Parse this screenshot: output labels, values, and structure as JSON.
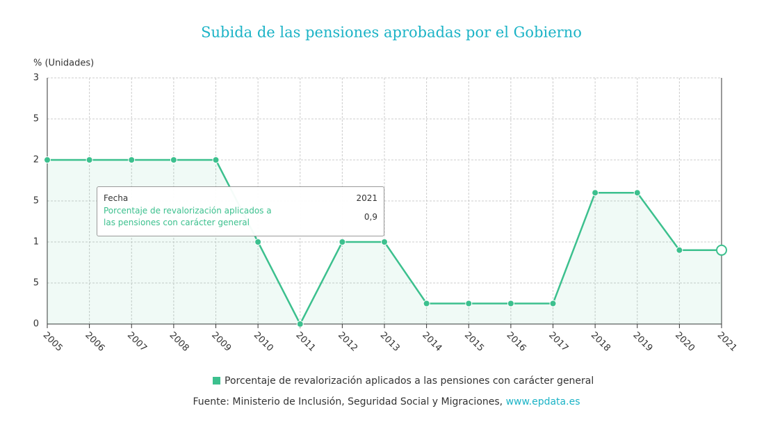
{
  "chart_data": {
    "type": "line",
    "title": "Subida de las pensiones aprobadas por el Gobierno",
    "y_axis_label": "% (Unidades)",
    "categories": [
      "2005",
      "2006",
      "2007",
      "2008",
      "2009",
      "2010",
      "2011",
      "2012",
      "2013",
      "2014",
      "2015",
      "2016",
      "2017",
      "2018",
      "2019",
      "2020",
      "2021"
    ],
    "series": [
      {
        "name": "Porcentaje de revalorización aplicados a las pensiones con carácter general",
        "color": "#3cc08e",
        "values": [
          2,
          2,
          2,
          2,
          2,
          1,
          0,
          1,
          1,
          0.25,
          0.25,
          0.25,
          0.25,
          1.6,
          1.6,
          0.9,
          0.9
        ]
      }
    ],
    "ylim": [
      0,
      3
    ],
    "yticks": [
      0,
      {
        "value": 0.5,
        "label": "5"
      },
      1,
      {
        "value": 1.5,
        "label": "5"
      },
      2,
      {
        "value": 2.5,
        "label": "5"
      },
      3
    ],
    "grid": true,
    "tooltip": {
      "header_label": "Fecha",
      "header_value": "2021",
      "series_label": "Porcentaje de revalorización aplicados a las pensiones con carácter general",
      "value_label": "0,9"
    },
    "source": "Fuente: Ministerio de Inclusión, Seguridad Social y Migraciones,",
    "source_link": "www.epdata.es"
  }
}
